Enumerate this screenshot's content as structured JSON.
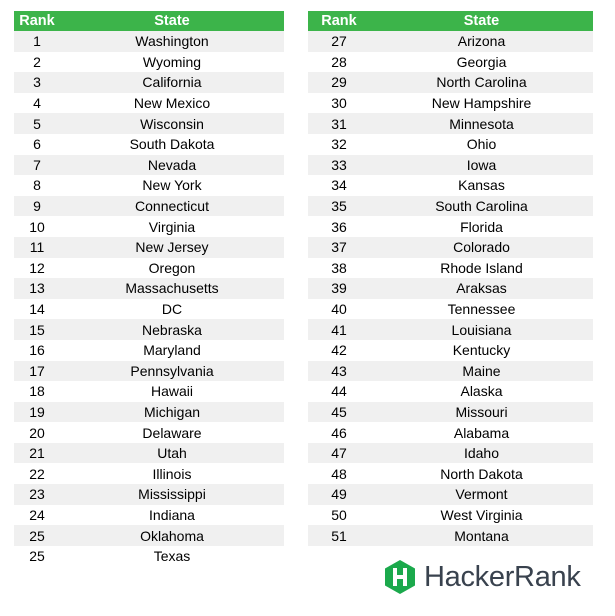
{
  "tables": [
    {
      "headers": {
        "rank": "Rank",
        "state": "State"
      },
      "rows": [
        {
          "rank": "1",
          "state": "Washington"
        },
        {
          "rank": "2",
          "state": "Wyoming"
        },
        {
          "rank": "3",
          "state": "California"
        },
        {
          "rank": "4",
          "state": "New Mexico"
        },
        {
          "rank": "5",
          "state": "Wisconsin"
        },
        {
          "rank": "6",
          "state": "South Dakota"
        },
        {
          "rank": "7",
          "state": "Nevada"
        },
        {
          "rank": "8",
          "state": "New York"
        },
        {
          "rank": "9",
          "state": "Connecticut"
        },
        {
          "rank": "10",
          "state": "Virginia"
        },
        {
          "rank": "11",
          "state": "New Jersey"
        },
        {
          "rank": "12",
          "state": "Oregon"
        },
        {
          "rank": "13",
          "state": "Massachusetts"
        },
        {
          "rank": "14",
          "state": "DC"
        },
        {
          "rank": "15",
          "state": "Nebraska"
        },
        {
          "rank": "16",
          "state": "Maryland"
        },
        {
          "rank": "17",
          "state": "Pennsylvania"
        },
        {
          "rank": "18",
          "state": "Hawaii"
        },
        {
          "rank": "19",
          "state": "Michigan"
        },
        {
          "rank": "20",
          "state": "Delaware"
        },
        {
          "rank": "21",
          "state": "Utah"
        },
        {
          "rank": "22",
          "state": "Illinois"
        },
        {
          "rank": "23",
          "state": "Mississippi"
        },
        {
          "rank": "24",
          "state": "Indiana"
        },
        {
          "rank": "25",
          "state": "Oklahoma"
        },
        {
          "rank": "25",
          "state": "Texas"
        }
      ]
    },
    {
      "headers": {
        "rank": "Rank",
        "state": "State"
      },
      "rows": [
        {
          "rank": "27",
          "state": "Arizona"
        },
        {
          "rank": "28",
          "state": "Georgia"
        },
        {
          "rank": "29",
          "state": "North Carolina"
        },
        {
          "rank": "30",
          "state": "New Hampshire"
        },
        {
          "rank": "31",
          "state": "Minnesota"
        },
        {
          "rank": "32",
          "state": "Ohio"
        },
        {
          "rank": "33",
          "state": "Iowa"
        },
        {
          "rank": "34",
          "state": "Kansas"
        },
        {
          "rank": "35",
          "state": "South Carolina"
        },
        {
          "rank": "36",
          "state": "Florida"
        },
        {
          "rank": "37",
          "state": "Colorado"
        },
        {
          "rank": "38",
          "state": "Rhode Island"
        },
        {
          "rank": "39",
          "state": "Araksas"
        },
        {
          "rank": "40",
          "state": "Tennessee"
        },
        {
          "rank": "41",
          "state": "Louisiana"
        },
        {
          "rank": "42",
          "state": "Kentucky"
        },
        {
          "rank": "43",
          "state": "Maine"
        },
        {
          "rank": "44",
          "state": "Alaska"
        },
        {
          "rank": "45",
          "state": "Missouri"
        },
        {
          "rank": "46",
          "state": "Alabama"
        },
        {
          "rank": "47",
          "state": "Idaho"
        },
        {
          "rank": "48",
          "state": "North Dakota"
        },
        {
          "rank": "49",
          "state": "Vermont"
        },
        {
          "rank": "50",
          "state": "West Virginia"
        },
        {
          "rank": "51",
          "state": "Montana"
        }
      ]
    }
  ],
  "logo": {
    "text": "HackerRank",
    "icon": "hackerrank-logo-icon",
    "mark_color": "#1ba94c",
    "text_color": "#39424e"
  },
  "colors": {
    "header_bg": "#3cb44a",
    "header_text": "#ffffff",
    "stripe": "#f0f0f0"
  }
}
